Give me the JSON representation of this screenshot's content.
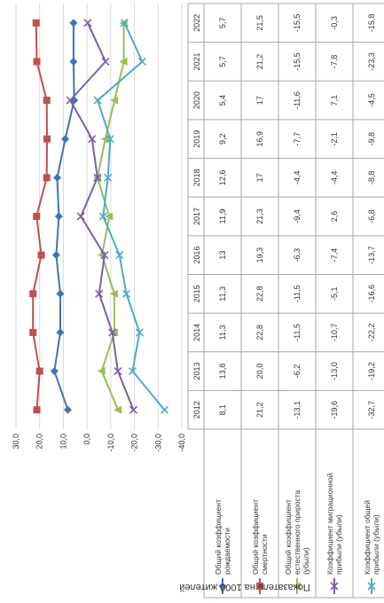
{
  "caption": "",
  "chart_data": {
    "type": "line",
    "ylabel": "Показатель на 1000 жителей",
    "ylim": [
      -40,
      30
    ],
    "y_ticks": [
      "30,0",
      "20,0",
      "10,0",
      "0,0",
      "-10,0",
      "-20,0",
      "-30,0",
      "-40,0"
    ],
    "grid": true,
    "legend": "left, inside data table",
    "categories": [
      "2012",
      "2013",
      "2014",
      "2015",
      "2016",
      "2017",
      "2018",
      "2019",
      "2020",
      "2021",
      "2022"
    ],
    "series": [
      {
        "name": "Общий коэффициент рождаемости",
        "color": "#3f73b5",
        "marker": "diamond",
        "values": [
          8.1,
          13.8,
          11.3,
          11.3,
          13,
          11.9,
          12.6,
          9.2,
          5.4,
          5.7,
          5.7
        ],
        "labels": [
          "8,1",
          "13,8",
          "11,3",
          "11,3",
          "13",
          "11,9",
          "12,6",
          "9,2",
          "5,4",
          "5,7",
          "5,7"
        ]
      },
      {
        "name": "Общий коэффициент смертности",
        "color": "#c0504d",
        "marker": "square",
        "values": [
          21.2,
          20.0,
          22.8,
          22.8,
          19.3,
          21.3,
          17,
          16.9,
          17,
          21.2,
          21.5
        ],
        "labels": [
          "21,2",
          "20,0",
          "22,8",
          "22,8",
          "19,3",
          "21,3",
          "17",
          "16,9",
          "17",
          "21,2",
          "21,5"
        ]
      },
      {
        "name": "Общий коэффициент естественного прироста (убыли)",
        "color": "#9bbb59",
        "marker": "triangle",
        "values": [
          -13.1,
          -6.2,
          -11.5,
          -11.5,
          -6.3,
          -9.4,
          -4.4,
          -7.7,
          -11.6,
          -15.5,
          -15.5
        ],
        "labels": [
          "-13,1",
          "-6,2",
          "-11,5",
          "-11,5",
          "-6,3",
          "-9,4",
          "-4,4",
          "-7,7",
          "-11,6",
          "-15,5",
          "-15,5"
        ]
      },
      {
        "name": "Коэффициент миграционной прибыли (убыли)",
        "color": "#7d5ea8",
        "marker": "x",
        "values": [
          -19.6,
          -13.0,
          -10.7,
          -5.1,
          -7.4,
          2.6,
          -4.4,
          -2.1,
          7.1,
          -7.8,
          -0.3
        ],
        "labels": [
          "-19,6",
          "-13,0",
          "-10,7",
          "-5,1",
          "-7,4",
          "2,6",
          "-4,4",
          "-2,1",
          "7,1",
          "-7,8",
          "-0,3"
        ]
      },
      {
        "name": "Коэффициент общей прибыли (убыли)",
        "color": "#4bacc6",
        "marker": "x",
        "values": [
          -32.7,
          -19.2,
          -22.2,
          -16.6,
          -13.7,
          -6.8,
          -8.8,
          -9.8,
          -4.5,
          -23.3,
          -15.8
        ],
        "labels": [
          "-32,7",
          "-19,2",
          "-22,2",
          "-16,6",
          "-13,7",
          "-6,8",
          "-8,8",
          "-9,8",
          "-4,5",
          "-23,3",
          "-15,8"
        ]
      }
    ]
  }
}
